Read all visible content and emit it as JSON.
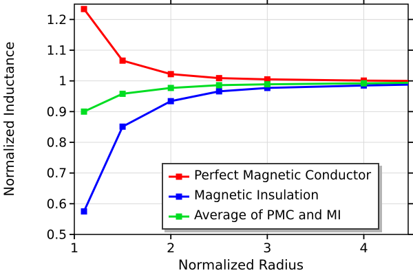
{
  "chart_data": {
    "type": "line",
    "title": "",
    "xlabel": "Normalized Radius",
    "ylabel": "Normalized Inductance",
    "x": [
      1.1,
      1.5,
      2,
      2.5,
      3,
      4,
      4.5
    ],
    "series": [
      {
        "name": "Perfect Magnetic Conductor",
        "color": "#ff0000",
        "marker": "square",
        "values": [
          1.234,
          1.066,
          1.022,
          1.009,
          1.005,
          1.001,
          1.0
        ]
      },
      {
        "name": "Magnetic Insulation",
        "color": "#0000ff",
        "marker": "square",
        "values": [
          0.575,
          0.851,
          0.934,
          0.966,
          0.977,
          0.985,
          0.988
        ]
      },
      {
        "name": "Average of PMC and MI",
        "color": "#00dd22",
        "marker": "square",
        "values": [
          0.9,
          0.958,
          0.977,
          0.986,
          0.989,
          0.992,
          0.994
        ]
      }
    ],
    "xlim": [
      1,
      4.46
    ],
    "ylim": [
      0.5,
      1.25
    ],
    "xticks": {
      "values": [
        1,
        2,
        3,
        4
      ],
      "labels": [
        "1",
        "2",
        "3",
        "4"
      ]
    },
    "yticks": {
      "values": [
        0.5,
        0.6,
        0.7,
        0.8,
        0.9,
        1.0,
        1.1,
        1.2
      ],
      "labels": [
        "0.5",
        "0.6",
        "0.7",
        "0.8",
        "0.9",
        "1",
        "1.1",
        "1.2"
      ]
    },
    "grid": true,
    "legend_position": "lower right",
    "colors": {
      "background": "#ffffff",
      "grid": "#d9d9d9",
      "axis": "#000000",
      "legend_border": "#3c3c3c",
      "legend_shadow": "#b4b4b4"
    }
  }
}
